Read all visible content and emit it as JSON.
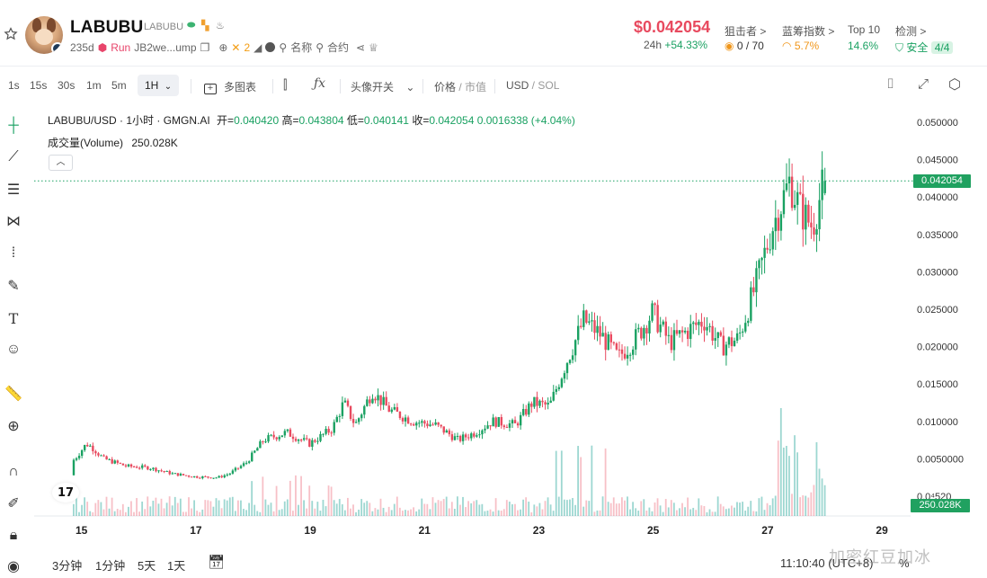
{
  "token": {
    "name": "LABUBU",
    "ticker": "LABUBU",
    "age": "235d",
    "run_label": "Run",
    "address": "JB2we...ump",
    "x_count": "2",
    "name_search_label": "名称",
    "contract_search_label": "合约"
  },
  "market": {
    "price": "$0.042054",
    "change_label": "24h",
    "change_value": "+54.33%",
    "snipers_label": "狙击者 >",
    "snipers_value": "0 / 70",
    "bluechip_label": "蓝筹指数 >",
    "bluechip_value": "5.7%",
    "top10_label": "Top 10",
    "top10_value": "14.6%",
    "detect_label": "检测 >",
    "detect_status": "安全",
    "detect_score": "4/4"
  },
  "toolbar": {
    "intervals": [
      "1s",
      "15s",
      "30s",
      "1m",
      "5m"
    ],
    "active_interval": "1H",
    "multi_chart": "多图表",
    "avatar_switch": "头像开关",
    "price_label": "价格",
    "mcap_label": "市值",
    "quote_usd": "USD",
    "quote_sol": "SOL"
  },
  "legend": {
    "symbol": "LABUBU/USD · 1小时 · GMGN.AI",
    "open_label": "开=",
    "open_value": "0.040420",
    "high_label": "高=",
    "high_value": "0.043804",
    "low_label": "低=",
    "low_value": "0.040141",
    "close_label": "收=",
    "close_value": "0.042054",
    "change": "0.0016338 (+4.04%)",
    "volume_label": "成交量(Volume)",
    "volume_value": "250.028K",
    "current_price_tag": "0.042054",
    "current_volume_tag": "250.028K"
  },
  "bottom": {
    "ranges": [
      "3分钟",
      "1分钟",
      "5天",
      "1天"
    ],
    "time": "11:10:40 (UTC+8)",
    "percent": "%"
  },
  "watermark": "加密红豆加冰",
  "colors": {
    "up": "#26a69a",
    "up_body": "#1aa162",
    "down": "#e84a5f",
    "grid": "#f0f1f4"
  },
  "chart_data": {
    "type": "candlestick",
    "y_ticks": [
      "0.050000",
      "0.045000",
      "0.040000",
      "0.035000",
      "0.030000",
      "0.025000",
      "0.020000",
      "0.015000",
      "0.010000",
      "0.0050000",
      "0.0⁴520"
    ],
    "x_ticks": [
      "15",
      "17",
      "19",
      "21",
      "23",
      "25",
      "27",
      "29"
    ],
    "ylim": [
      0,
      0.05
    ],
    "close_path": [
      [
        "14",
        0.003
      ],
      [
        "14.3",
        0.005
      ],
      [
        "14.5",
        0.007
      ],
      [
        "14.6",
        0.0065
      ],
      [
        "14.8",
        0.005
      ],
      [
        "15.2",
        0.004
      ],
      [
        "15.6",
        0.0038
      ],
      [
        "16.0",
        0.003
      ],
      [
        "16.4",
        0.0026
      ],
      [
        "16.8",
        0.0025
      ],
      [
        "17.0",
        0.003
      ],
      [
        "17.3",
        0.0045
      ],
      [
        "17.6",
        0.0075
      ],
      [
        "18.0",
        0.0085
      ],
      [
        "18.4",
        0.007
      ],
      [
        "18.8",
        0.009
      ],
      [
        "19.0",
        0.0125
      ],
      [
        "19.2",
        0.0095
      ],
      [
        "19.5",
        0.014
      ],
      [
        "19.8",
        0.0115
      ],
      [
        "20.2",
        0.01
      ],
      [
        "20.6",
        0.0095
      ],
      [
        "21.0",
        0.0075
      ],
      [
        "21.3",
        0.0085
      ],
      [
        "21.6",
        0.01
      ],
      [
        "22.0",
        0.0095
      ],
      [
        "22.3",
        0.0125
      ],
      [
        "22.6",
        0.012
      ],
      [
        "22.9",
        0.018
      ],
      [
        "23.2",
        0.0235
      ],
      [
        "23.5",
        0.0215
      ],
      [
        "23.8",
        0.0185
      ],
      [
        "24.1",
        0.021
      ],
      [
        "24.4",
        0.0245
      ],
      [
        "24.7",
        0.0205
      ],
      [
        "25.0",
        0.022
      ],
      [
        "25.3",
        0.0235
      ],
      [
        "25.6",
        0.02
      ],
      [
        "25.9",
        0.021
      ],
      [
        "26.2",
        0.028
      ],
      [
        "26.5",
        0.036
      ],
      [
        "26.8",
        0.042
      ],
      [
        "27.0",
        0.038
      ],
      [
        "27.2",
        0.036
      ],
      [
        "27.4",
        0.042
      ]
    ],
    "volume_note": "volume histogram below price, peak near Jun 26–27"
  }
}
